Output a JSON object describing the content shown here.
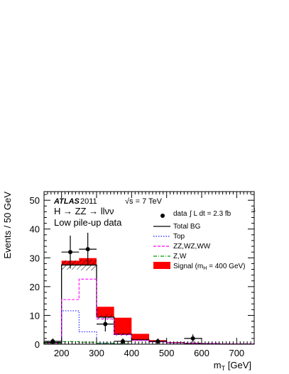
{
  "chart_data": {
    "type": "histogram",
    "experiment": "ATLAS",
    "year": "2011",
    "energy": "√s = 7 TeV",
    "channel": "H → ZZ → llνν",
    "subtitle": "Low pile-up data",
    "lumi_label": "data",
    "lumi_value": "∫ L dt = 2.3 fb",
    "lumi_exp": "-1",
    "xlabel_main": "m",
    "xlabel_sub": "T",
    "xlabel_unit": " [GeV]",
    "ylabel": "Events / 50 GeV",
    "xlim": [
      150,
      750
    ],
    "ylim": [
      0,
      53
    ],
    "x_ticks": [
      200,
      300,
      400,
      500,
      600,
      700
    ],
    "y_ticks": [
      0,
      10,
      20,
      30,
      40,
      50
    ],
    "bin_edges": [
      150,
      200,
      250,
      300,
      350,
      400,
      450,
      500,
      550,
      600,
      650,
      700,
      750
    ],
    "series": [
      {
        "name": "Total BG",
        "style": "line",
        "color": "#000000",
        "values": [
          0.6,
          27.5,
          27.5,
          9.4,
          3.4,
          1.5,
          0.9,
          0.5,
          0.3,
          0.2,
          0.1,
          0.1
        ]
      },
      {
        "name": "Top",
        "style": "dotted",
        "color": "#1a1aff",
        "values": [
          0,
          11.6,
          4.3,
          0.4,
          0.1,
          0,
          0,
          0,
          0,
          0,
          0,
          0
        ]
      },
      {
        "name": "ZZ,WZ,WW",
        "style": "dashed",
        "color": "#ff00ff",
        "values": [
          0.3,
          15.5,
          22.6,
          8.8,
          3.3,
          1.3,
          0.8,
          0.5,
          0.3,
          0.2,
          0.1,
          0.1
        ]
      },
      {
        "name": "Z,W",
        "style": "dashdot",
        "color": "#009900",
        "values": [
          0.3,
          0.9,
          0.7,
          0.3,
          0.1,
          0,
          0,
          0,
          0,
          0,
          0,
          0
        ]
      }
    ],
    "signal": {
      "name": "Signal (m",
      "name_sub": "H",
      "name_end": " = 400 GeV)",
      "color": "#ff0000",
      "values": [
        0.6,
        29.0,
        29.9,
        13.0,
        9.2,
        3.6,
        1.4,
        0.7,
        0.5,
        0.3,
        0.2,
        0.1
      ]
    },
    "bg_uncertainty": {
      "low": [
        0.4,
        25.9,
        25.6,
        8.5,
        2.9,
        1.2,
        0.7,
        0.4,
        0.2,
        0.1,
        0.05,
        0.05
      ],
      "high": [
        0.8,
        29.1,
        29.4,
        10.3,
        3.9,
        1.8,
        1.1,
        0.6,
        0.4,
        0.3,
        0.15,
        0.15
      ]
    },
    "data": {
      "name": "data",
      "points": [
        {
          "x": 175,
          "y": 1,
          "err": 1.0
        },
        {
          "x": 225,
          "y": 32,
          "err": 5.7
        },
        {
          "x": 275,
          "y": 33,
          "err": 5.7
        },
        {
          "x": 325,
          "y": 7,
          "err": 2.6
        },
        {
          "x": 375,
          "y": 1,
          "err": 1.0
        },
        {
          "x": 475,
          "y": 1,
          "err": 1.0
        },
        {
          "x": 575,
          "y": 2,
          "err": 1.4
        }
      ]
    }
  }
}
